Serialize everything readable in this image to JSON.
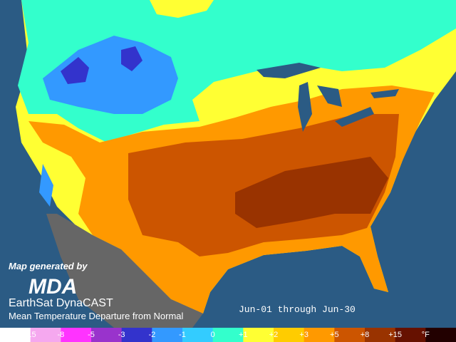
{
  "caption": {
    "generated_by": "Map generated by",
    "logo": "MDA",
    "product": "EarthSat DynaCAST",
    "description": "Mean Temperature Departure from Normal",
    "period": "Jun-01 through Jun-30"
  },
  "legend": {
    "labels": [
      "-15",
      "-8",
      "-5",
      "-3",
      "-2",
      "-1",
      "0",
      "+1",
      "+2",
      "+3",
      "+5",
      "+8",
      "+15",
      "°F"
    ],
    "colors": [
      "#ffffff",
      "#f5a8ef",
      "#ff33ff",
      "#9933cc",
      "#3333cc",
      "#3399ff",
      "#33ccff",
      "#33ffcc",
      "#ffff33",
      "#ffcc00",
      "#ff9900",
      "#cc5500",
      "#993300",
      "#661100",
      "#220000"
    ]
  }
}
